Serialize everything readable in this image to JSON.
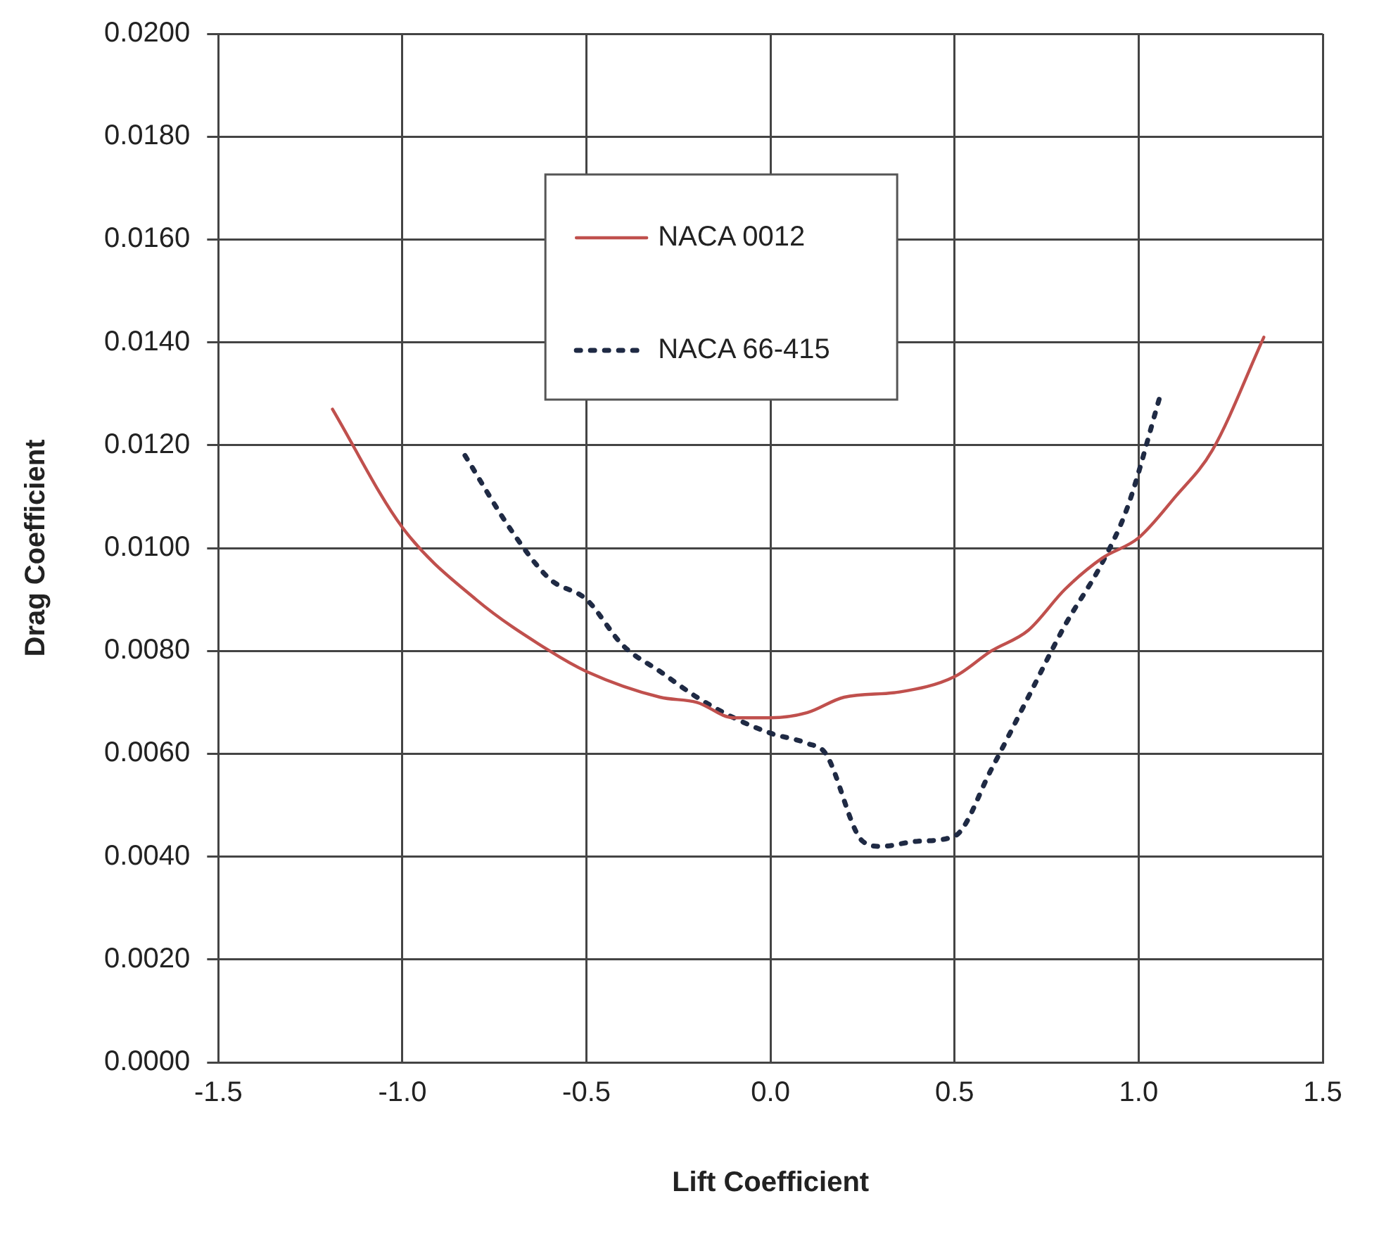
{
  "chart_data": {
    "type": "line",
    "xlabel": "Lift Coefficient",
    "ylabel": "Drag Coefficient",
    "xlim": [
      -1.5,
      1.5
    ],
    "xticks": [
      {
        "value": -1.5,
        "label": "-1.5"
      },
      {
        "value": -1,
        "label": "-1.0"
      },
      {
        "value": -0.5,
        "label": "-0.5"
      },
      {
        "value": 0,
        "label": "0.0"
      },
      {
        "value": 0.5,
        "label": "0.5"
      },
      {
        "value": 1,
        "label": "1.0"
      },
      {
        "value": 1.5,
        "label": "1.5"
      }
    ],
    "ylim": [
      0,
      0.02
    ],
    "yticks": [
      {
        "value": 0,
        "label": "0.0000"
      },
      {
        "value": 0.002,
        "label": "0.0020"
      },
      {
        "value": 0.004,
        "label": "0.0040"
      },
      {
        "value": 0.006,
        "label": "0.0060"
      },
      {
        "value": 0.008,
        "label": "0.0080"
      },
      {
        "value": 0.01,
        "label": "0.0100"
      },
      {
        "value": 0.012,
        "label": "0.0120"
      },
      {
        "value": 0.014,
        "label": "0.0140"
      },
      {
        "value": 0.016,
        "label": "0.0160"
      },
      {
        "value": 0.018,
        "label": "0.0180"
      },
      {
        "value": 0.02,
        "label": "0.0200"
      }
    ],
    "grid": true,
    "legend": "top",
    "marker": "none",
    "series": [
      {
        "name": "NACA 0012",
        "color": "#c0504d",
        "line_style": "solid",
        "x": [
          -1.19,
          -1.0,
          -0.8,
          -0.6,
          -0.5,
          -0.3,
          -0.2,
          -0.1,
          0,
          0.1,
          0.2,
          0.35,
          0.5,
          0.6,
          0.7,
          0.8,
          0.9,
          1.0,
          1.1,
          1.2,
          1.34
        ],
        "values": [
          0.0127,
          0.0104,
          0.009,
          0.008,
          0.0076,
          0.0071,
          0.007,
          0.0067,
          0.0067,
          0.0068,
          0.0071,
          0.0072,
          0.0075,
          0.008,
          0.0084,
          0.0092,
          0.0098,
          0.0102,
          0.011,
          0.0119,
          0.0141
        ]
      },
      {
        "name": "NACA 66-415",
        "color": "#1f2a44",
        "line_style": "dotted",
        "x": [
          -0.83,
          -0.7,
          -0.6,
          -0.5,
          -0.4,
          -0.3,
          -0.2,
          -0.1,
          0,
          0.1,
          0.15,
          0.25,
          0.3,
          0.4,
          0.5,
          0.6,
          0.7,
          0.8,
          0.9,
          0.97,
          1.06
        ],
        "values": [
          0.0118,
          0.0103,
          0.0094,
          0.009,
          0.0081,
          0.0076,
          0.0071,
          0.0067,
          0.0064,
          0.0062,
          0.006,
          0.0043,
          0.0042,
          0.0043,
          0.0044,
          0.0057,
          0.0071,
          0.0085,
          0.0097,
          0.0108,
          0.013
        ]
      }
    ]
  }
}
